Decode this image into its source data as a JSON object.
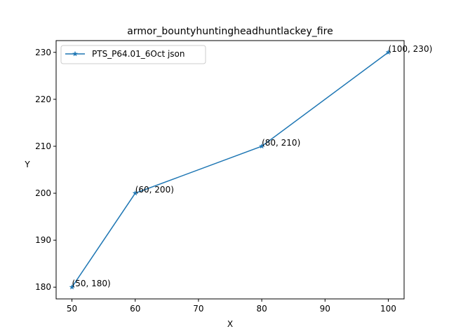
{
  "chart_data": {
    "type": "line",
    "title": "armor_bountyhuntingheadhuntlackey_fire",
    "xlabel": "X",
    "ylabel": "Y",
    "xlim": [
      47.5,
      102.5
    ],
    "ylim": [
      177.5,
      232.5
    ],
    "xticks": [
      50,
      60,
      70,
      80,
      90,
      100
    ],
    "yticks": [
      180,
      190,
      200,
      210,
      220,
      230
    ],
    "grid": false,
    "legend_position": "top-left",
    "series": [
      {
        "name": "PTS_P64.01_6Oct json",
        "marker": "star",
        "color": "#1f77b4",
        "x": [
          50,
          60,
          80,
          100
        ],
        "y": [
          180,
          200,
          210,
          230
        ]
      }
    ],
    "annotations": [
      "(50, 180)",
      "(60, 200)",
      "(80, 210)",
      "(100, 230)"
    ]
  }
}
